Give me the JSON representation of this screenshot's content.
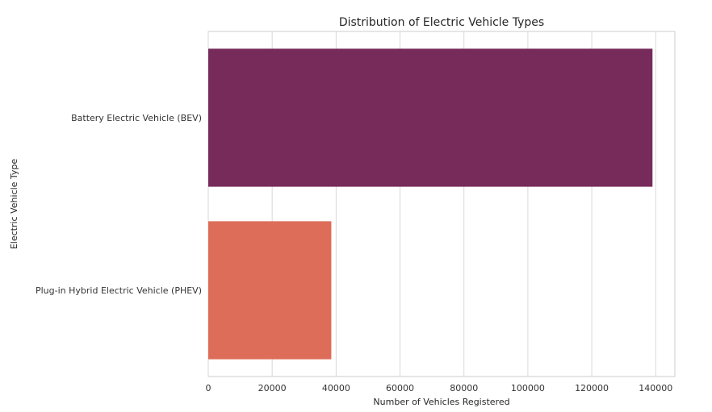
{
  "chart_data": {
    "type": "bar",
    "orientation": "horizontal",
    "title": "Distribution of Electric Vehicle Types",
    "xlabel": "Number of Vehicles Registered",
    "ylabel": "Electric Vehicle Type",
    "categories": [
      "Battery Electric Vehicle (BEV)",
      "Plug-in Hybrid Electric Vehicle (PHEV)"
    ],
    "values": [
      139000,
      38500
    ],
    "colors": [
      "#772b5a",
      "#dd6d58"
    ],
    "xlim": [
      0,
      146000
    ],
    "xticks": [
      0,
      20000,
      40000,
      60000,
      80000,
      100000,
      120000,
      140000
    ],
    "xtick_labels": [
      "0",
      "20000",
      "40000",
      "60000",
      "80000",
      "100000",
      "120000",
      "140000"
    ],
    "grid": true
  }
}
